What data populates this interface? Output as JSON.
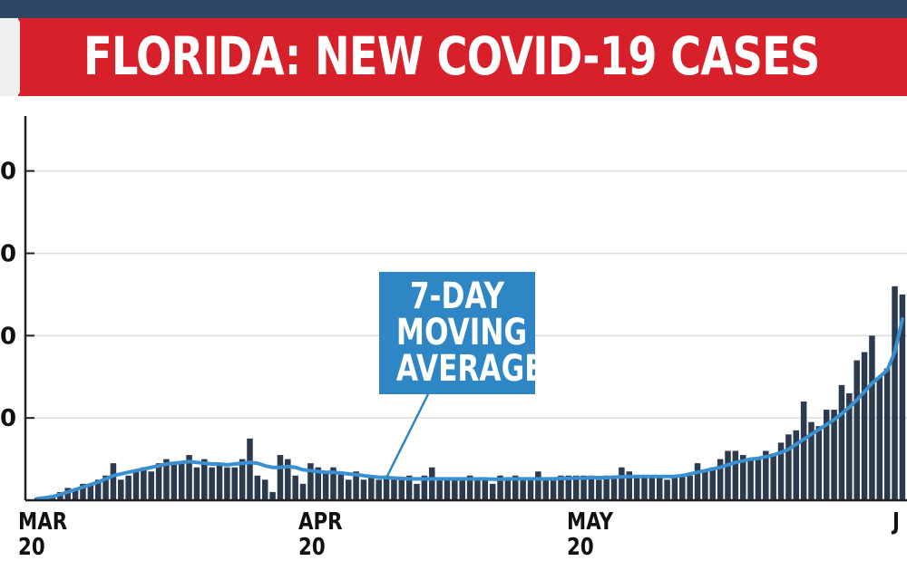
{
  "header": {
    "title": "FLORIDA: NEW COVID-19 CASES"
  },
  "colors": {
    "banner": "#d8202b",
    "top_strip": "#2f4764",
    "bars": "#2b3a4f",
    "average_line": "#3a8fd0",
    "annotation_fill": "#2f86c4"
  },
  "chart_data": {
    "type": "bar",
    "title": "FLORIDA: NEW COVID-19 CASES",
    "xlabel": "",
    "ylabel": "",
    "grid": true,
    "ylim": [
      0,
      4800
    ],
    "x_ticks": [
      {
        "label": "MAR",
        "sub": "20"
      },
      {
        "label": "APR",
        "sub": "20"
      },
      {
        "label": "MAY",
        "sub": "20"
      },
      {
        "label": "J",
        "sub": ""
      }
    ],
    "y_ticks": [
      {
        "value": 1000,
        "label": "0"
      },
      {
        "value": 2000,
        "label": "0"
      },
      {
        "value": 3000,
        "label": "0"
      },
      {
        "value": 4000,
        "label": "0"
      }
    ],
    "series": [
      {
        "type": "bar",
        "values": [
          30,
          50,
          60,
          100,
          150,
          120,
          200,
          180,
          250,
          300,
          450,
          250,
          300,
          350,
          400,
          350,
          450,
          500,
          450,
          450,
          550,
          400,
          500,
          400,
          450,
          400,
          400,
          500,
          750,
          300,
          250,
          100,
          550,
          500,
          300,
          200,
          450,
          400,
          350,
          400,
          350,
          250,
          350,
          250,
          300,
          250,
          300,
          250,
          250,
          300,
          200,
          300,
          400,
          250,
          250,
          250,
          250,
          300,
          250,
          250,
          200,
          300,
          250,
          300,
          250,
          250,
          350,
          250,
          250,
          300,
          300,
          300,
          300,
          300,
          250,
          300,
          300,
          400,
          350,
          300,
          300,
          300,
          300,
          250,
          300,
          300,
          300,
          450,
          350,
          400,
          500,
          600,
          600,
          550,
          500,
          500,
          600,
          550,
          700,
          800,
          850,
          1200,
          950,
          900,
          1100,
          1100,
          1400,
          1300,
          1700,
          1800,
          2000,
          1500,
          1600,
          2600,
          2500
        ]
      },
      {
        "type": "line",
        "values": [
          20,
          30,
          45,
          70,
          100,
          130,
          160,
          190,
          220,
          260,
          300,
          320,
          340,
          360,
          380,
          400,
          420,
          440,
          450,
          460,
          470,
          460,
          450,
          440,
          440,
          430,
          440,
          450,
          460,
          450,
          420,
          400,
          400,
          410,
          400,
          370,
          360,
          350,
          340,
          340,
          330,
          320,
          310,
          300,
          290,
          280,
          275,
          270,
          265,
          260,
          260,
          260,
          260,
          260,
          260,
          260,
          260,
          260,
          260,
          260,
          255,
          255,
          260,
          260,
          260,
          260,
          260,
          260,
          260,
          265,
          265,
          270,
          270,
          275,
          275,
          275,
          280,
          285,
          290,
          290,
          290,
          290,
          290,
          290,
          290,
          300,
          320,
          340,
          360,
          380,
          400,
          430,
          460,
          480,
          500,
          510,
          530,
          550,
          580,
          620,
          680,
          740,
          800,
          860,
          920,
          980,
          1050,
          1130,
          1220,
          1320,
          1420,
          1500,
          1580,
          1800,
          2200
        ]
      }
    ],
    "annotations": [
      {
        "lines": [
          "7-DAY",
          "MOVING",
          "AVERAGE"
        ],
        "target": "average_line"
      }
    ]
  }
}
